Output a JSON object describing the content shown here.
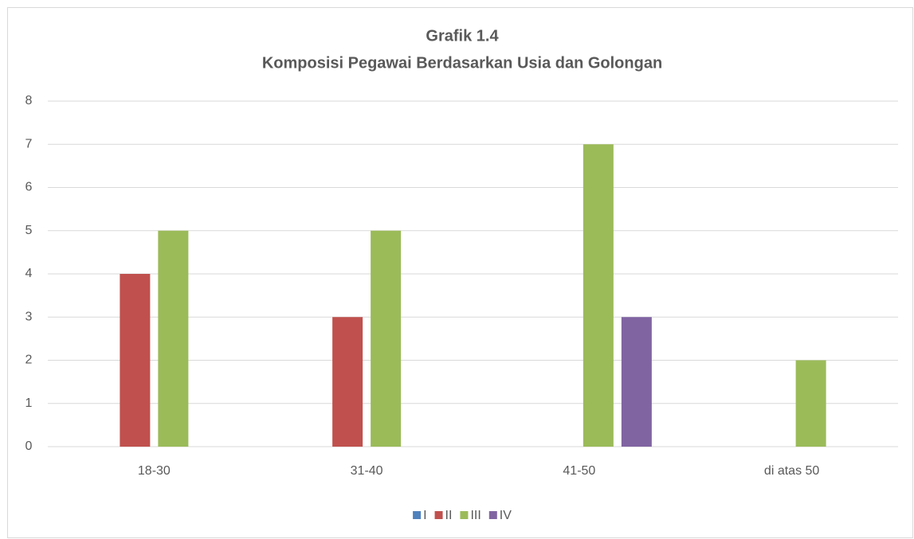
{
  "chart_data": {
    "type": "bar",
    "title": "Grafik 1.4",
    "subtitle": "Komposisi Pegawai Berdasarkan Usia dan Golongan",
    "categories": [
      "18-30",
      "31-40",
      "41-50",
      "di atas 50"
    ],
    "series": [
      {
        "name": "I",
        "color": "#4f81bd",
        "values": [
          0,
          0,
          0,
          0
        ]
      },
      {
        "name": "II",
        "color": "#c0504d",
        "values": [
          4,
          3,
          0,
          0
        ]
      },
      {
        "name": "III",
        "color": "#9bbb59",
        "values": [
          5,
          5,
          7,
          2
        ]
      },
      {
        "name": "IV",
        "color": "#8064a2",
        "values": [
          0,
          0,
          3,
          0
        ]
      }
    ],
    "ylim": [
      0,
      8
    ],
    "yticks": [
      0,
      1,
      2,
      3,
      4,
      5,
      6,
      7,
      8
    ],
    "grid": true,
    "legend": "bottom"
  }
}
